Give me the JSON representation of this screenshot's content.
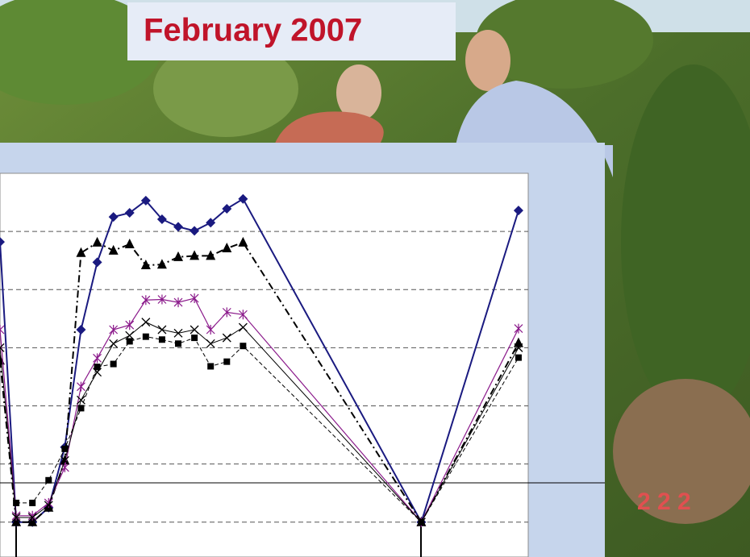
{
  "header": {
    "title": "February 2007"
  },
  "chart_data": {
    "type": "line",
    "x": [
      -1,
      0,
      1,
      2,
      3,
      4,
      5,
      6,
      7,
      8,
      9,
      10,
      11,
      12,
      13,
      14,
      25,
      31
    ],
    "xlim": [
      -1,
      31.6
    ],
    "ylim": [
      -0.6,
      6.0
    ],
    "yticks": [
      0,
      1,
      2,
      3,
      4,
      5
    ],
    "grid": true,
    "series": [
      {
        "color": "#1a1a80",
        "marker": "diamond",
        "dash": "solid",
        "width": 2,
        "values": [
          4.82,
          0,
          0,
          0.25,
          1.29,
          3.31,
          4.47,
          5.25,
          5.32,
          5.53,
          5.21,
          5.08,
          5.01,
          5.15,
          5.39,
          5.56,
          0,
          5.36
        ]
      },
      {
        "color": "#000000",
        "marker": "triangle",
        "dash": "dashdot",
        "width": 2,
        "values": [
          2.78,
          0,
          0,
          0.25,
          1.06,
          4.63,
          4.81,
          4.67,
          4.78,
          4.42,
          4.43,
          4.56,
          4.58,
          4.58,
          4.71,
          4.81,
          0,
          3.08
        ]
      },
      {
        "color": "#8b1a8b",
        "marker": "star",
        "dash": "solid",
        "width": 1.2,
        "values": [
          3.31,
          0.11,
          0.11,
          0.33,
          0.94,
          2.33,
          2.82,
          3.31,
          3.39,
          3.82,
          3.83,
          3.78,
          3.85,
          3.31,
          3.61,
          3.57,
          0,
          3.33
        ]
      },
      {
        "color": "#000000",
        "marker": "x",
        "dash": "solid",
        "width": 1,
        "values": [
          3.0,
          0.08,
          0.08,
          0.29,
          1.06,
          2.1,
          2.58,
          3.07,
          3.21,
          3.44,
          3.31,
          3.25,
          3.31,
          3.07,
          3.17,
          3.35,
          0,
          3.0
        ]
      },
      {
        "color": "#000000",
        "marker": "square",
        "dash": "dashed",
        "width": 1,
        "values": [
          null,
          0.33,
          0.33,
          0.72,
          1.26,
          1.96,
          2.67,
          2.72,
          3.11,
          3.19,
          3.14,
          3.07,
          3.17,
          2.68,
          2.76,
          3.03,
          0,
          2.83
        ]
      }
    ]
  }
}
